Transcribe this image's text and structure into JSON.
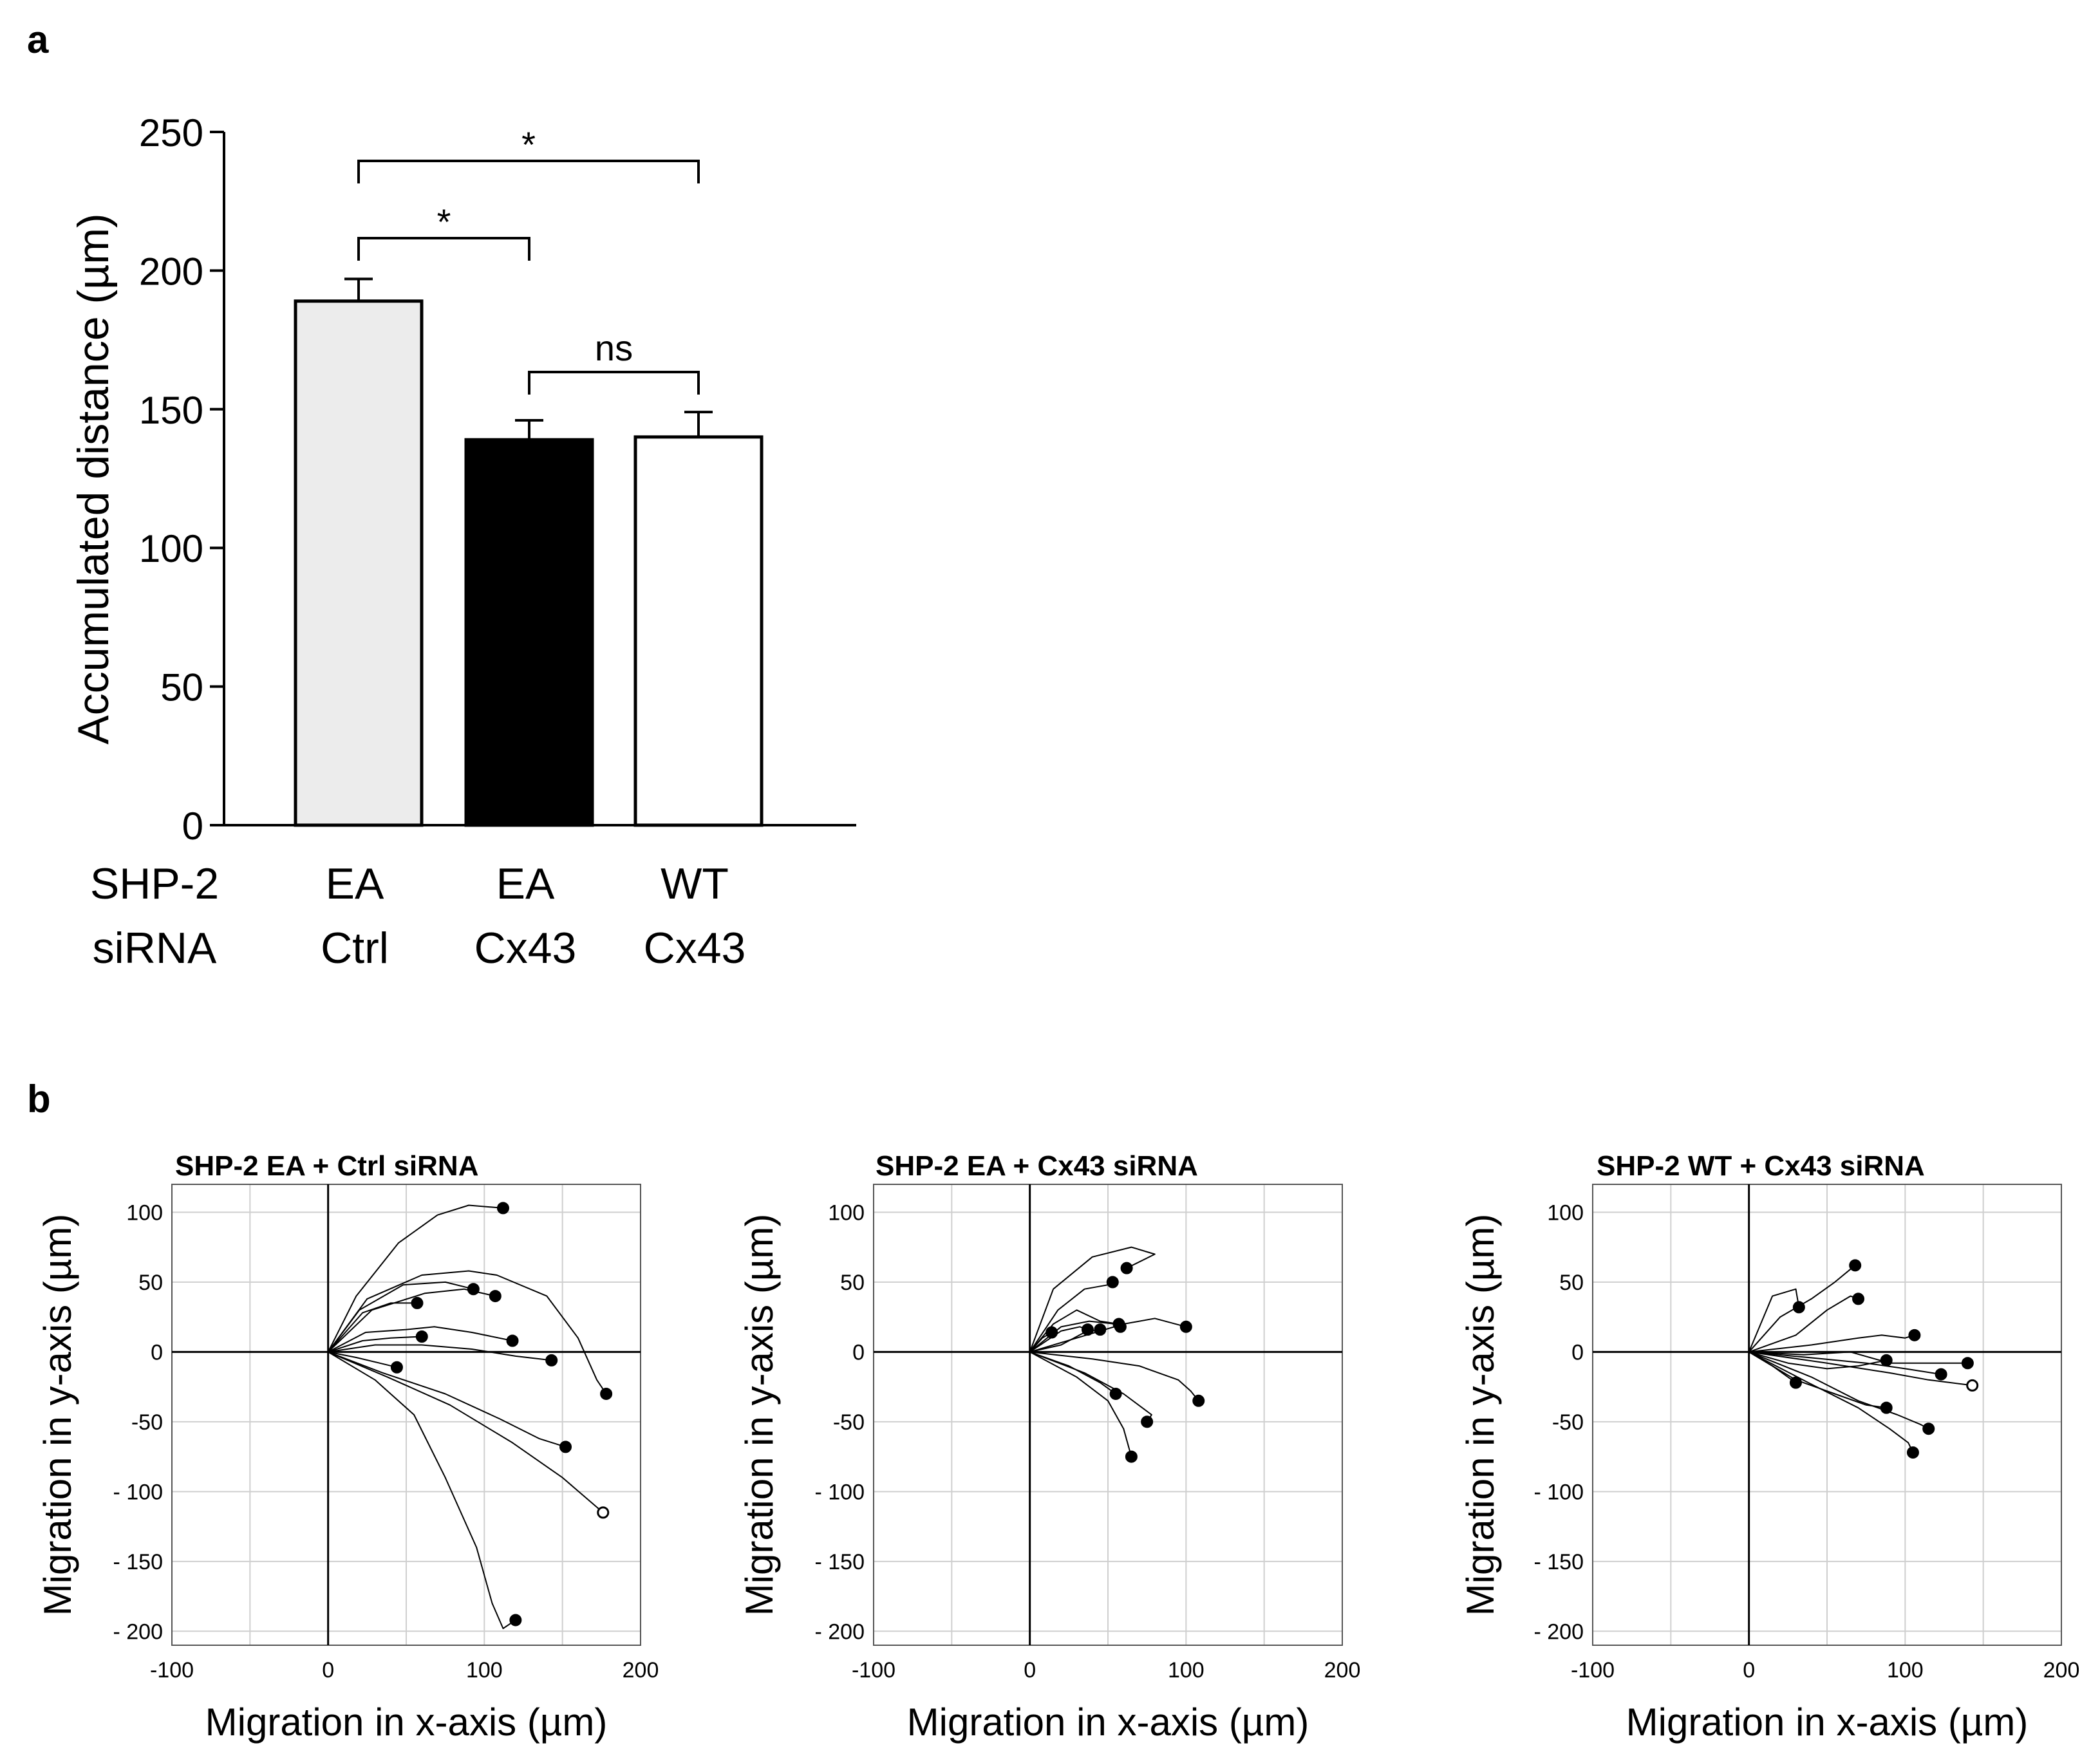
{
  "panel_a_label": "a",
  "panel_b_label": "b",
  "chart_data": [
    {
      "type": "bar",
      "ylabel": "Accumulated distance (µm)",
      "ylim": [
        0,
        250
      ],
      "yticks": [
        0,
        50,
        100,
        150,
        200,
        250
      ],
      "row_labels": [
        "SHP-2",
        "siRNA"
      ],
      "categories": [
        {
          "line1": "EA",
          "line2": "Ctrl"
        },
        {
          "line1": "EA",
          "line2": "Cx43"
        },
        {
          "line1": "WT",
          "line2": "Cx43"
        }
      ],
      "values": [
        189,
        139,
        140
      ],
      "errors": [
        8,
        7,
        9
      ],
      "bar_colors": [
        "#ececec",
        "#000000",
        "#ffffff"
      ],
      "significance": [
        {
          "from": 0,
          "to": 2,
          "label": "*"
        },
        {
          "from": 0,
          "to": 1,
          "label": "*"
        },
        {
          "from": 1,
          "to": 2,
          "label": "ns"
        }
      ]
    },
    {
      "type": "line",
      "title": "SHP-2 EA + Ctrl siRNA",
      "xlabel": "Migration in x-axis (µm)",
      "ylabel": "Migration in y-axis (µm)",
      "xlim": [
        -100,
        200
      ],
      "ylim": [
        -210,
        120
      ],
      "xticks": [
        -100,
        0,
        100,
        200
      ],
      "yticks": [
        100,
        50,
        0,
        -50,
        -100,
        -150,
        -200
      ],
      "ytick_labels": [
        "100",
        "50",
        "0",
        "-50",
        "- 100",
        "- 150",
        "- 200"
      ],
      "grid": true,
      "tracks": [
        [
          [
            0,
            0
          ],
          [
            18,
            40
          ],
          [
            45,
            78
          ],
          [
            70,
            98
          ],
          [
            90,
            105
          ],
          [
            112,
            103
          ]
        ],
        [
          [
            0,
            0
          ],
          [
            25,
            38
          ],
          [
            60,
            55
          ],
          [
            90,
            58
          ],
          [
            108,
            55
          ],
          [
            140,
            40
          ],
          [
            160,
            10
          ],
          [
            172,
            -20
          ],
          [
            178,
            -30
          ]
        ],
        [
          [
            0,
            0
          ],
          [
            20,
            30
          ],
          [
            48,
            48
          ],
          [
            75,
            50
          ],
          [
            93,
            45
          ]
        ],
        [
          [
            0,
            0
          ],
          [
            22,
            28
          ],
          [
            40,
            35
          ],
          [
            57,
            35
          ]
        ],
        [
          [
            0,
            0
          ],
          [
            28,
            30
          ],
          [
            62,
            42
          ],
          [
            87,
            45
          ],
          [
            107,
            40
          ]
        ],
        [
          [
            0,
            0
          ],
          [
            24,
            14
          ],
          [
            50,
            16
          ],
          [
            68,
            18
          ],
          [
            92,
            14
          ],
          [
            118,
            8
          ]
        ],
        [
          [
            0,
            0
          ],
          [
            30,
            5
          ],
          [
            60,
            5
          ],
          [
            92,
            2
          ],
          [
            120,
            -3
          ],
          [
            143,
            -6
          ]
        ],
        [
          [
            0,
            0
          ],
          [
            22,
            8
          ],
          [
            40,
            10
          ],
          [
            60,
            11
          ]
        ],
        [
          [
            0,
            0
          ],
          [
            18,
            -4
          ],
          [
            33,
            -8
          ],
          [
            44,
            -11
          ]
        ],
        [
          [
            0,
            0
          ],
          [
            35,
            -15
          ],
          [
            75,
            -30
          ],
          [
            110,
            -48
          ],
          [
            135,
            -62
          ],
          [
            152,
            -68
          ]
        ],
        [
          [
            0,
            0
          ],
          [
            38,
            -18
          ],
          [
            78,
            -38
          ],
          [
            118,
            -65
          ],
          [
            150,
            -90
          ],
          [
            176,
            -115
          ]
        ],
        [
          [
            0,
            0
          ],
          [
            30,
            -20
          ],
          [
            55,
            -45
          ],
          [
            75,
            -90
          ],
          [
            95,
            -140
          ],
          [
            105,
            -180
          ],
          [
            112,
            -198
          ],
          [
            120,
            -192
          ]
        ]
      ],
      "endpoints_open": [
        [
          176,
          -115
        ]
      ]
    },
    {
      "type": "line",
      "title": "SHP-2 EA + Cx43 siRNA",
      "xlabel": "Migration in x-axis (µm)",
      "ylabel": "Migration in y-axis (µm)",
      "xlim": [
        -100,
        200
      ],
      "ylim": [
        -210,
        120
      ],
      "xticks": [
        -100,
        0,
        100,
        200
      ],
      "yticks": [
        100,
        50,
        0,
        -50,
        -100,
        -150,
        -200
      ],
      "ytick_labels": [
        "100",
        "50",
        "0",
        "-50",
        "- 100",
        "- 150",
        "- 200"
      ],
      "grid": true,
      "tracks": [
        [
          [
            0,
            0
          ],
          [
            15,
            45
          ],
          [
            40,
            68
          ],
          [
            65,
            75
          ],
          [
            80,
            70
          ],
          [
            62,
            60
          ]
        ],
        [
          [
            0,
            0
          ],
          [
            18,
            30
          ],
          [
            35,
            45
          ],
          [
            50,
            48
          ],
          [
            53,
            50
          ]
        ],
        [
          [
            0,
            0
          ],
          [
            15,
            20
          ],
          [
            30,
            30
          ],
          [
            45,
            22
          ],
          [
            57,
            20
          ]
        ],
        [
          [
            0,
            0
          ],
          [
            20,
            18
          ],
          [
            38,
            22
          ],
          [
            55,
            20
          ],
          [
            58,
            18
          ]
        ],
        [
          [
            0,
            0
          ],
          [
            30,
            10
          ],
          [
            60,
            20
          ],
          [
            80,
            24
          ],
          [
            100,
            18
          ]
        ],
        [
          [
            0,
            0
          ],
          [
            20,
            5
          ],
          [
            35,
            14
          ],
          [
            45,
            16
          ]
        ],
        [
          [
            0,
            0
          ],
          [
            8,
            10
          ],
          [
            14,
            14
          ]
        ],
        [
          [
            0,
            0
          ],
          [
            20,
            15
          ],
          [
            32,
            18
          ],
          [
            37,
            16
          ]
        ],
        [
          [
            0,
            0
          ],
          [
            25,
            -10
          ],
          [
            45,
            -22
          ],
          [
            55,
            -30
          ]
        ],
        [
          [
            0,
            0
          ],
          [
            40,
            -5
          ],
          [
            70,
            -10
          ],
          [
            95,
            -20
          ],
          [
            103,
            -28
          ],
          [
            108,
            -35
          ]
        ],
        [
          [
            0,
            0
          ],
          [
            35,
            -15
          ],
          [
            60,
            -30
          ],
          [
            78,
            -45
          ],
          [
            75,
            -50
          ]
        ],
        [
          [
            0,
            0
          ],
          [
            30,
            -18
          ],
          [
            50,
            -35
          ],
          [
            60,
            -55
          ],
          [
            65,
            -75
          ]
        ]
      ],
      "endpoints_open": [
        [
          72,
          -51
        ]
      ]
    },
    {
      "type": "line",
      "title": "SHP-2 WT + Cx43 siRNA",
      "xlabel": "Migration in x-axis (µm)",
      "ylabel": "Migration in y-axis (µm)",
      "xlim": [
        -100,
        200
      ],
      "ylim": [
        -210,
        120
      ],
      "xticks": [
        -100,
        0,
        100,
        200
      ],
      "yticks": [
        100,
        50,
        0,
        -50,
        -100,
        -150,
        -200
      ],
      "ytick_labels": [
        "100",
        "50",
        "0",
        "-50",
        "- 100",
        "- 150",
        "- 200"
      ],
      "grid": true,
      "tracks": [
        [
          [
            0,
            0
          ],
          [
            20,
            25
          ],
          [
            40,
            38
          ],
          [
            55,
            50
          ],
          [
            68,
            62
          ]
        ],
        [
          [
            0,
            0
          ],
          [
            15,
            40
          ],
          [
            30,
            45
          ],
          [
            32,
            32
          ]
        ],
        [
          [
            0,
            0
          ],
          [
            30,
            12
          ],
          [
            50,
            30
          ],
          [
            65,
            40
          ],
          [
            70,
            38
          ]
        ],
        [
          [
            0,
            0
          ],
          [
            40,
            5
          ],
          [
            70,
            10
          ],
          [
            85,
            12
          ],
          [
            100,
            10
          ],
          [
            106,
            12
          ]
        ],
        [
          [
            0,
            0
          ],
          [
            35,
            -2
          ],
          [
            65,
            0
          ],
          [
            90,
            -8
          ],
          [
            140,
            -8
          ]
        ],
        [
          [
            0,
            0
          ],
          [
            38,
            -4
          ],
          [
            75,
            -8
          ],
          [
            100,
            -12
          ],
          [
            123,
            -16
          ]
        ],
        [
          [
            0,
            0
          ],
          [
            50,
            -8
          ],
          [
            90,
            -15
          ],
          [
            115,
            -20
          ],
          [
            143,
            -24
          ]
        ],
        [
          [
            0,
            0
          ],
          [
            25,
            -8
          ],
          [
            50,
            -12
          ],
          [
            70,
            -10
          ],
          [
            88,
            -6
          ]
        ],
        [
          [
            0,
            0
          ],
          [
            15,
            -10
          ],
          [
            25,
            -18
          ],
          [
            30,
            -22
          ]
        ],
        [
          [
            0,
            0
          ],
          [
            30,
            -20
          ],
          [
            55,
            -30
          ],
          [
            75,
            -38
          ],
          [
            88,
            -40
          ]
        ],
        [
          [
            0,
            0
          ],
          [
            40,
            -18
          ],
          [
            70,
            -35
          ],
          [
            95,
            -45
          ],
          [
            110,
            -52
          ],
          [
            115,
            -55
          ]
        ],
        [
          [
            0,
            0
          ],
          [
            38,
            -22
          ],
          [
            70,
            -40
          ],
          [
            90,
            -55
          ],
          [
            102,
            -65
          ],
          [
            105,
            -72
          ]
        ]
      ],
      "endpoints_open": [
        [
          141,
          -8
        ],
        [
          143,
          -24
        ]
      ]
    }
  ]
}
